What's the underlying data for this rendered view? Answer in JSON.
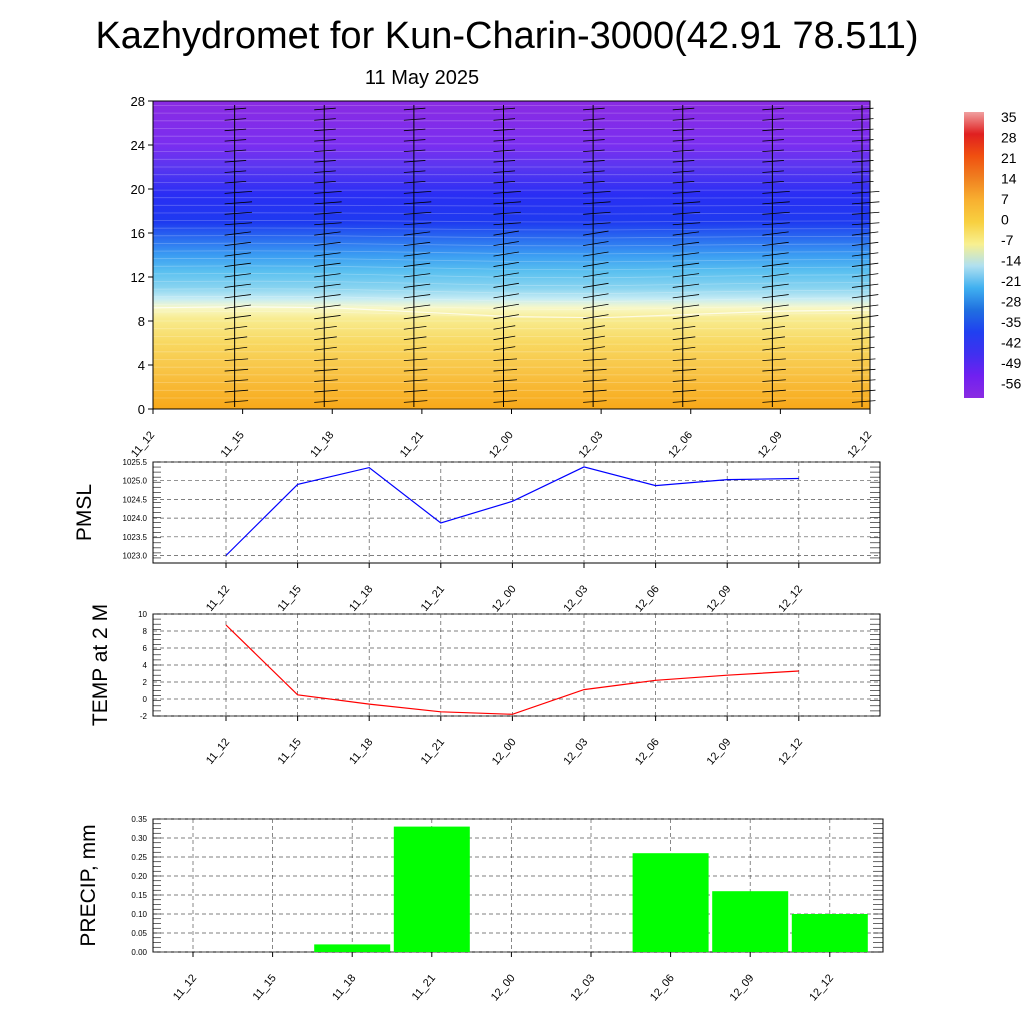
{
  "title": "Kazhydromet for Kun-Charin-3000(42.91 78.511)",
  "subtitle": "11 May 2025",
  "time_labels": [
    "11_12",
    "11_15",
    "11_18",
    "11_21",
    "12_00",
    "12_03",
    "12_06",
    "12_09",
    "12_12"
  ],
  "colorbar": {
    "labels": [
      "35",
      "28",
      "21",
      "14",
      "7",
      "0",
      "-7",
      "-14",
      "-21",
      "-28",
      "-35",
      "-42",
      "-49",
      "-56"
    ],
    "colors_top_to_bottom": [
      "#f0a0a0",
      "#e02020",
      "#f05010",
      "#f08020",
      "#f8b030",
      "#f8d040",
      "#f8f090",
      "#b0e0f0",
      "#40b0f0",
      "#2070e0",
      "#2040f0",
      "#4030f0",
      "#7020f0",
      "#8a2be2"
    ]
  },
  "chart_data": [
    {
      "type": "heatmap",
      "description_key": "cross_section",
      "ylim": [
        0,
        28
      ],
      "yticks": [
        0,
        4,
        8,
        12,
        16,
        20,
        24,
        28
      ],
      "categories": [
        "11_12",
        "11_15",
        "11_18",
        "11_21",
        "12_00",
        "12_03",
        "12_06",
        "12_09",
        "12_12"
      ],
      "freezing_level": [
        9.2,
        9.3,
        9.2,
        8.8,
        8.4,
        8.3,
        8.6,
        8.9,
        9.0
      ],
      "cold_core_level": [
        17.5,
        18.0,
        18.2,
        17.8,
        17.5,
        17.3,
        17.5,
        17.8,
        18.0
      ],
      "wind_barb_columns": [
        "11_15",
        "11_18",
        "11_21",
        "12_00",
        "12_03",
        "12_06",
        "12_09",
        "12_12"
      ]
    },
    {
      "type": "line",
      "ylabel": "PMSL",
      "categories": [
        "11_12",
        "11_15",
        "11_18",
        "11_21",
        "12_00",
        "12_03",
        "12_06",
        "12_09",
        "12_12"
      ],
      "series": [
        {
          "color": "#0000ff",
          "values": [
            1023.0,
            1024.9,
            1025.35,
            1023.87,
            1024.45,
            1025.37,
            1024.87,
            1025.03,
            1025.06
          ]
        }
      ],
      "ylim": [
        1022.8,
        1025.5
      ],
      "yticks": [
        "1023.0",
        "1023.5",
        "1024.0",
        "1024.5",
        "1025.0",
        "1025.5"
      ],
      "grid": true
    },
    {
      "type": "line",
      "ylabel": "TEMP at 2 M",
      "categories": [
        "11_12",
        "11_15",
        "11_18",
        "11_21",
        "12_00",
        "12_03",
        "12_06",
        "12_09",
        "12_12"
      ],
      "series": [
        {
          "color": "#ff0000",
          "values": [
            8.7,
            0.5,
            -0.6,
            -1.5,
            -1.8,
            1.1,
            2.2,
            2.8,
            3.3
          ]
        }
      ],
      "ylim": [
        -2,
        10
      ],
      "yticks": [
        "-2",
        "0",
        "2",
        "4",
        "6",
        "8",
        "10"
      ],
      "grid": true
    },
    {
      "type": "bar",
      "ylabel": "PRECIP, mm",
      "categories": [
        "11_12",
        "11_15",
        "11_18",
        "11_21",
        "12_00",
        "12_03",
        "12_06",
        "12_09",
        "12_12"
      ],
      "values": [
        0,
        0,
        0.02,
        0.33,
        0,
        0,
        0.26,
        0.16,
        0.1
      ],
      "color": "#00ff00",
      "ylim": [
        0,
        0.35
      ],
      "yticks": [
        "0.00",
        "0.05",
        "0.10",
        "0.15",
        "0.20",
        "0.25",
        "0.30",
        "0.35"
      ],
      "grid": true
    }
  ]
}
